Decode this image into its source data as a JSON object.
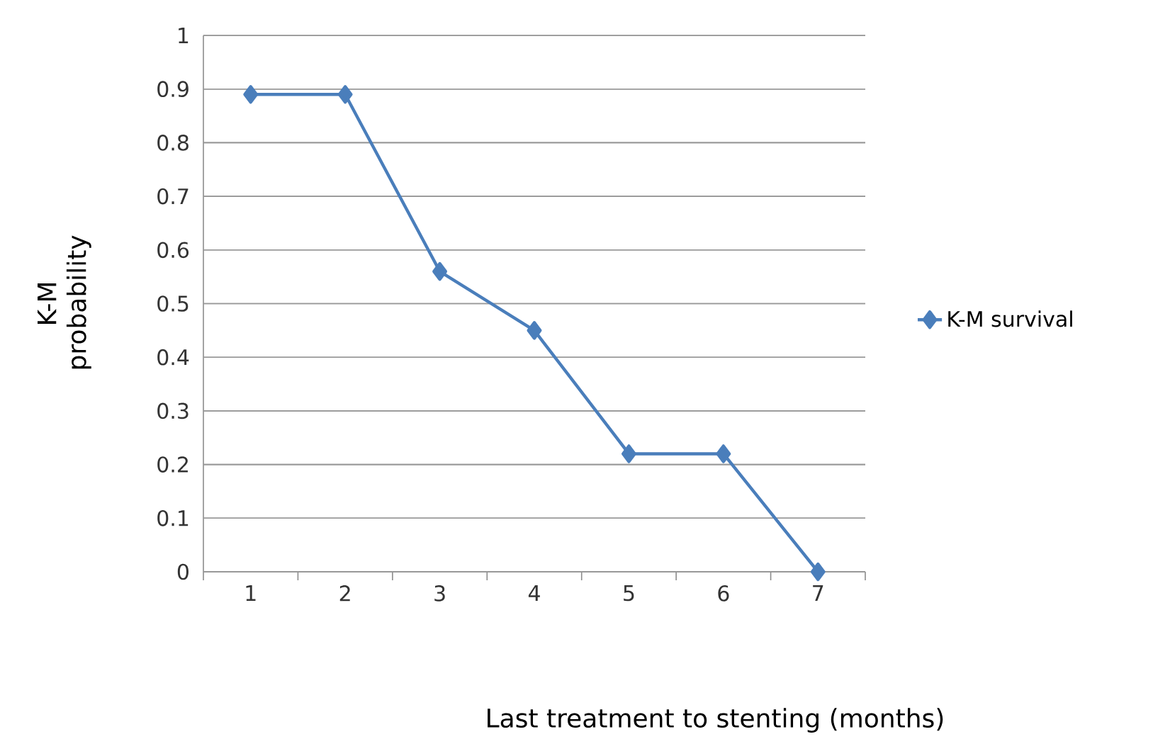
{
  "chart_data": {
    "type": "line",
    "xlabel": "Last treatment to stenting (months)",
    "ylabel": "K-M probability",
    "categories": [
      "1",
      "2",
      "3",
      "4",
      "5",
      "6",
      "7"
    ],
    "series": [
      {
        "name": "K-M survival",
        "color": "#4a7ebb",
        "values": [
          0.89,
          0.89,
          0.56,
          0.45,
          0.22,
          0.22,
          0
        ]
      }
    ],
    "ylim": [
      0,
      1
    ],
    "yticks": [
      0,
      0.1,
      0.2,
      0.3,
      0.4,
      0.5,
      0.6,
      0.7,
      0.8,
      0.9,
      1
    ],
    "grid": "y",
    "legend": "right",
    "marker": "diamond",
    "line_style": "solid"
  }
}
